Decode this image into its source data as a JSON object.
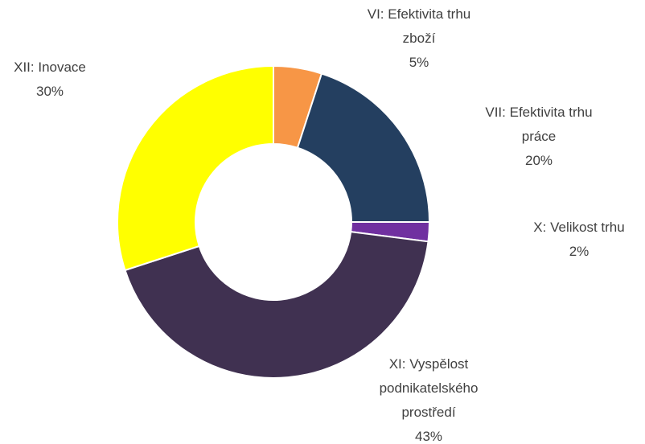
{
  "chart_data": {
    "type": "donut",
    "categories": [
      "VI: Efektivita trhu zboží",
      "VII: Efektivita trhu práce",
      "X: Velikost trhu",
      "XI: Vyspělost podnikatelského prostředí",
      "XII: Inovace"
    ],
    "values": [
      5,
      20,
      2,
      43,
      30
    ],
    "value_labels": [
      "5%",
      "20%",
      "2%",
      "43%",
      "30%"
    ],
    "colors": [
      "#f79646",
      "#243f60",
      "#7030a0",
      "#403151",
      "#ffff00"
    ]
  }
}
